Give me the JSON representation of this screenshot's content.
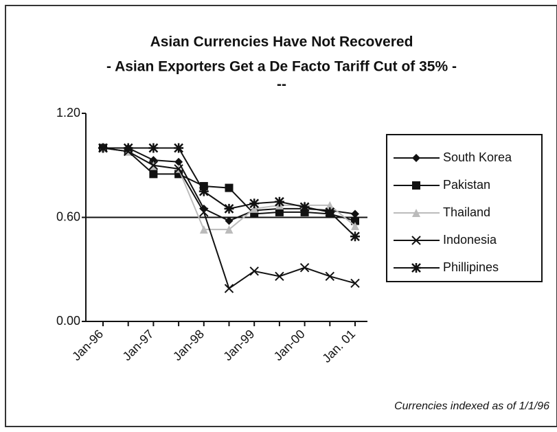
{
  "chart_data": {
    "type": "line",
    "title": "Asian Currencies Have Not Recovered",
    "subtitle": "- Asian Exporters Get a De Facto Tariff Cut of 35% -",
    "subtitle2": "--",
    "note": "Currencies indexed as of 1/1/96",
    "categories": [
      "Jan-96",
      null,
      "Jan-97",
      null,
      "Jan-98",
      null,
      "Jan-99",
      null,
      "Jan-00",
      null,
      "Jan. 01"
    ],
    "ylim": [
      0,
      1.2
    ],
    "yticks": [
      {
        "value": 0,
        "label": "0.00"
      },
      {
        "value": 0.6,
        "label": "0.60"
      },
      {
        "value": 1.2,
        "label": "1.20"
      }
    ],
    "grid": true,
    "legend": "right",
    "series": [
      {
        "name": "South Korea",
        "color": "#111111",
        "marker": "diamond",
        "values": [
          1.0,
          1.0,
          0.93,
          0.92,
          0.65,
          0.58,
          0.64,
          0.65,
          0.65,
          0.64,
          0.62
        ]
      },
      {
        "name": "Pakistan",
        "color": "#111111",
        "marker": "square",
        "values": [
          1.0,
          0.98,
          0.85,
          0.85,
          0.78,
          0.77,
          0.62,
          0.63,
          0.63,
          0.62,
          0.58
        ]
      },
      {
        "name": "Thailand",
        "color": "#bbbbbb",
        "marker": "triangle",
        "values": [
          1.0,
          0.98,
          0.9,
          0.88,
          0.53,
          0.53,
          0.65,
          0.67,
          0.67,
          0.67,
          0.55
        ]
      },
      {
        "name": "Indonesia",
        "color": "#111111",
        "marker": "x",
        "values": [
          1.0,
          0.98,
          0.9,
          0.88,
          0.63,
          0.19,
          0.29,
          0.26,
          0.31,
          0.26,
          0.22
        ]
      },
      {
        "name": "Phillipines",
        "color": "#111111",
        "marker": "asterisk",
        "values": [
          1.0,
          1.0,
          1.0,
          1.0,
          0.75,
          0.65,
          0.68,
          0.69,
          0.66,
          0.63,
          0.49
        ]
      }
    ]
  }
}
